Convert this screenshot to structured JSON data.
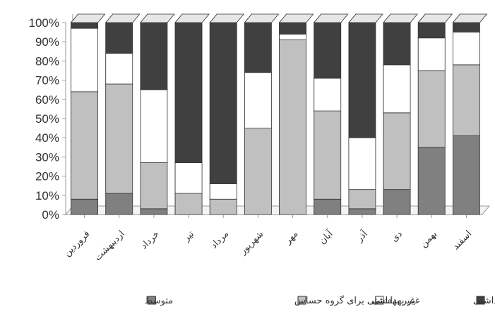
{
  "chart_data": {
    "type": "bar",
    "stacked": true,
    "percent": true,
    "categories": [
      "فروردین",
      "اردیبهشت",
      "خرداد",
      "تیر",
      "مرداد",
      "شهریور",
      "مهر",
      "آبان",
      "آذر",
      "دی",
      "بهمن",
      "اسفند"
    ],
    "y_ticks": [
      "0%",
      "10%",
      "20%",
      "30%",
      "40%",
      "50%",
      "60%",
      "70%",
      "80%",
      "90%",
      "100%"
    ],
    "ylim": [
      0,
      100
    ],
    "grid": false,
    "legend_position": "bottom",
    "series": [
      {
        "name": "متوسط",
        "color": "#808080",
        "values": [
          8,
          11,
          3,
          0,
          0,
          0,
          0,
          8,
          3,
          13,
          35,
          41
        ]
      },
      {
        "name": "غیر بهداشتی برای گروه حساس",
        "color": "#c0c0c0",
        "values": [
          56,
          57,
          24,
          11,
          8,
          45,
          91,
          46,
          10,
          40,
          40,
          37
        ]
      },
      {
        "name": "غیر بهداشتی",
        "color": "#ffffff",
        "values": [
          33,
          16,
          38,
          16,
          8,
          29,
          3,
          17,
          27,
          25,
          17,
          17
        ]
      },
      {
        "name": "بسیار غیر بهداشتی",
        "color": "#404040",
        "values": [
          3,
          16,
          35,
          73,
          84,
          26,
          6,
          29,
          60,
          22,
          8,
          5
        ]
      }
    ]
  }
}
